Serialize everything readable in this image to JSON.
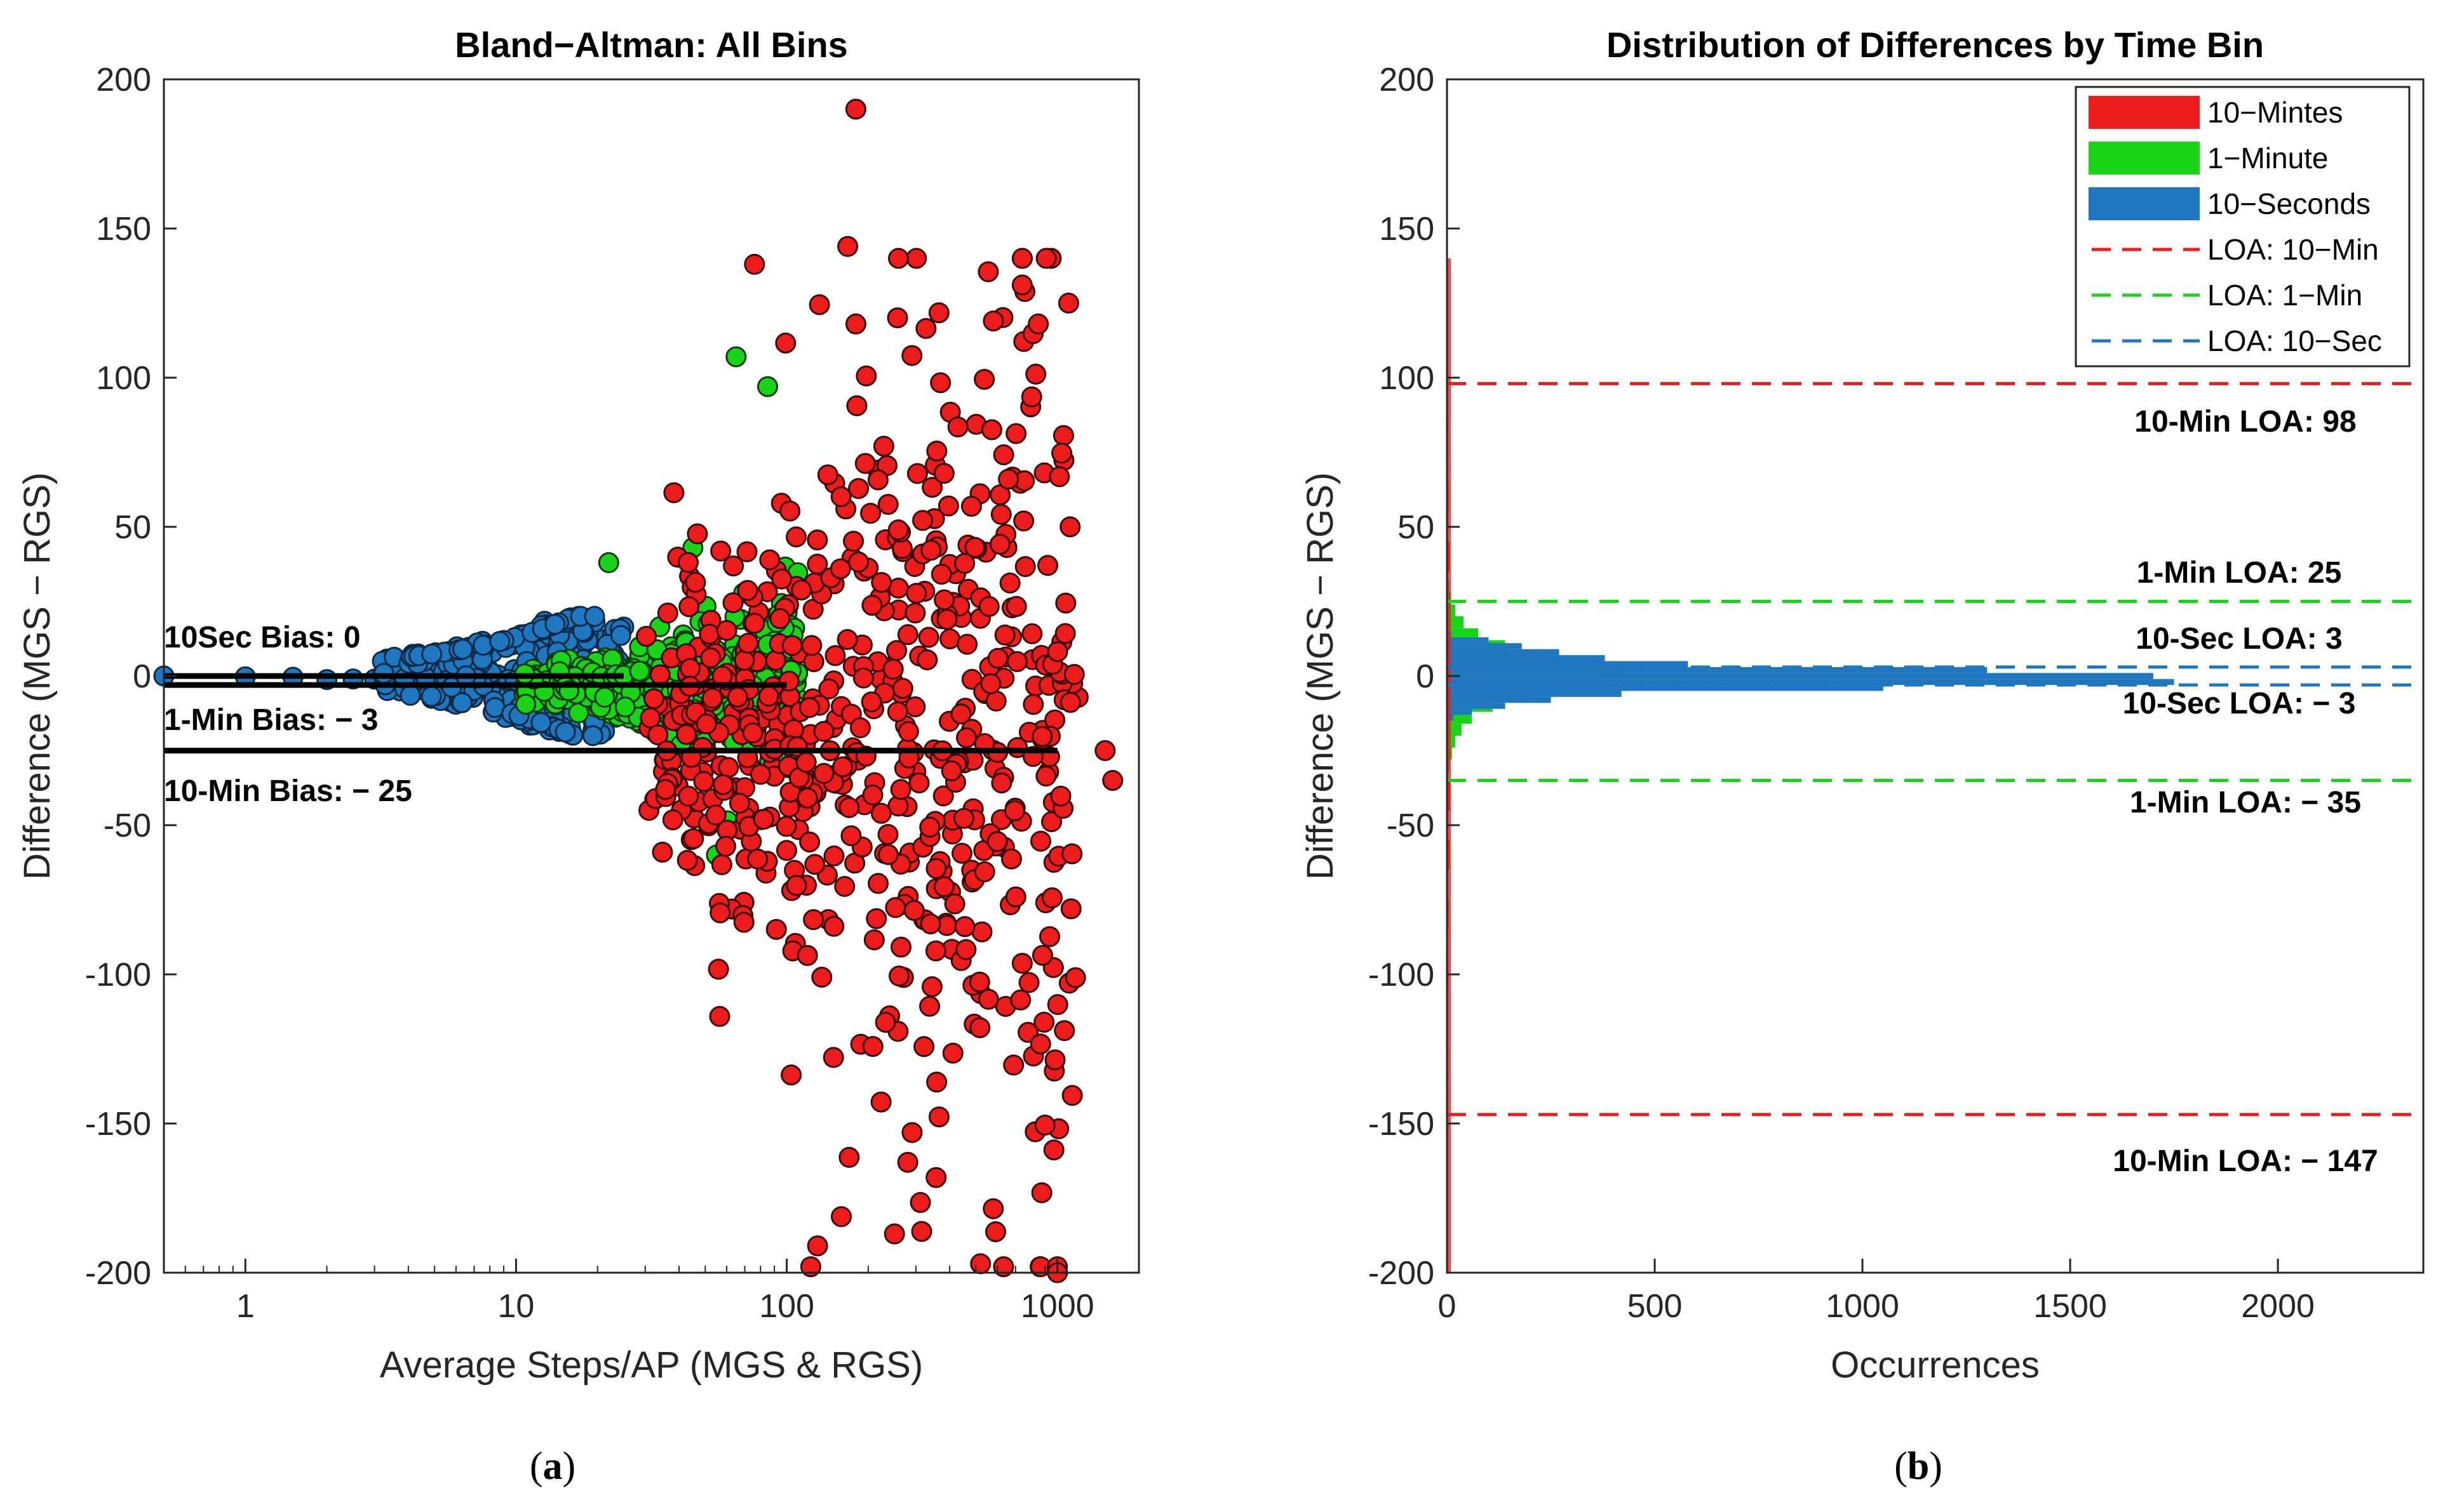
{
  "chart_data": [
    {
      "type": "scatter",
      "title": "Bland−Altman: All Bins",
      "xlabel": "Average Steps/AP (MGS & RGS)",
      "ylabel": "Difference (MGS − RGS)",
      "xscale": "log",
      "xlim": [
        0.5,
        2000
      ],
      "ylim": [
        -200,
        200
      ],
      "xticks": [
        1,
        10,
        100,
        1000
      ],
      "yticks": [
        -200,
        -150,
        -100,
        -50,
        0,
        50,
        100,
        150,
        200
      ],
      "xtick_labels": [
        "1",
        "10",
        "100",
        "1000"
      ],
      "ytick_labels": [
        "-200",
        "-150",
        "-100",
        "-50",
        "0",
        "50",
        "100",
        "150",
        "200"
      ],
      "series": [
        {
          "name": "10-Seconds",
          "color": "#1f77c0",
          "x_range": [
            0.5,
            25
          ],
          "spread_at_max_x": 20
        },
        {
          "name": "1-Minute",
          "color": "#19d419",
          "x_range": [
            10,
            110
          ],
          "spread_at_max_x": 45
        },
        {
          "name": "10-Mintes",
          "color": "#ec1c1c",
          "x_range": [
            25,
            1600
          ],
          "spread_range": [
            -200,
            190
          ]
        }
      ],
      "bias_lines": [
        {
          "label": "10Sec Bias: 0",
          "y": 0
        },
        {
          "label": "1-Min Bias:  − 3",
          "y": -3
        },
        {
          "label": "10-Min Bias:  − 25",
          "y": -25
        }
      ],
      "caption": "(a)"
    },
    {
      "type": "bar",
      "orientation": "horizontal",
      "title": "Distribution of Differences by Time Bin",
      "xlabel": "Occurrences",
      "ylabel": "Difference (MGS − RGS)",
      "xlim": [
        0,
        2350
      ],
      "ylim": [
        -200,
        200
      ],
      "xticks": [
        0,
        500,
        1000,
        1500,
        2000
      ],
      "xtick_labels": [
        "0",
        "500",
        "1000",
        "1500",
        "2000"
      ],
      "yticks": [
        -200,
        -150,
        -100,
        -50,
        0,
        50,
        100,
        150,
        200
      ],
      "ytick_labels": [
        "-200",
        "-150",
        "-100",
        "-50",
        "0",
        "50",
        "100",
        "150",
        "200"
      ],
      "series": [
        {
          "name": "10-Seconds",
          "color": "#1f77c0",
          "bins": [
            [
              14,
              10
            ],
            [
              12,
              100
            ],
            [
              10,
              180
            ],
            [
              8,
              270
            ],
            [
              6,
              380
            ],
            [
              4,
              580
            ],
            [
              2,
              1300
            ],
            [
              0,
              1700
            ],
            [
              -2,
              1750
            ],
            [
              -4,
              1050
            ],
            [
              -6,
              420
            ],
            [
              -8,
              250
            ],
            [
              -10,
              140
            ],
            [
              -12,
              60
            ],
            [
              -14,
              15
            ]
          ]
        },
        {
          "name": "1-Minute",
          "color": "#19d419",
          "bins": [
            [
              30,
              5
            ],
            [
              26,
              10
            ],
            [
              22,
              20
            ],
            [
              18,
              40
            ],
            [
              14,
              75
            ],
            [
              10,
              140
            ],
            [
              6,
              250
            ],
            [
              2,
              430
            ],
            [
              -2,
              360
            ],
            [
              -6,
              200
            ],
            [
              -10,
              110
            ],
            [
              -14,
              60
            ],
            [
              -18,
              35
            ],
            [
              -22,
              20
            ],
            [
              -26,
              12
            ],
            [
              -30,
              6
            ]
          ]
        },
        {
          "name": "10-Mintes",
          "color": "#ec1c1c",
          "bins": [
            [
              120,
              1
            ],
            [
              100,
              2
            ],
            [
              80,
              3
            ],
            [
              60,
              4
            ],
            [
              40,
              6
            ],
            [
              20,
              10
            ],
            [
              10,
              16
            ],
            [
              0,
              22
            ],
            [
              -10,
              16
            ],
            [
              -20,
              12
            ],
            [
              -40,
              8
            ],
            [
              -60,
              6
            ],
            [
              -80,
              4
            ],
            [
              -100,
              3
            ],
            [
              -130,
              3
            ],
            [
              -160,
              2
            ],
            [
              -190,
              2
            ]
          ]
        }
      ],
      "loa_lines": [
        {
          "series": "10-Mintes",
          "y": 98,
          "label": "10-Min LOA: 98",
          "color": "#ec1c1c"
        },
        {
          "series": "10-Mintes",
          "y": -147,
          "label": "10-Min LOA:  − 147",
          "color": "#ec1c1c"
        },
        {
          "series": "1-Minute",
          "y": 25,
          "label": "1-Min LOA: 25",
          "color": "#19d419"
        },
        {
          "series": "1-Minute",
          "y": -35,
          "label": "1-Min LOA:  − 35",
          "color": "#19d419"
        },
        {
          "series": "10-Seconds",
          "y": 3,
          "label": "10-Sec LOA: 3",
          "color": "#1f77c0"
        },
        {
          "series": "10-Seconds",
          "y": -3,
          "label": "10-Sec LOA:  − 3",
          "color": "#1f77c0"
        }
      ],
      "legend": {
        "position": "top-right",
        "entries": [
          {
            "label": "10−Mintes",
            "kind": "patch",
            "color": "#ec1c1c"
          },
          {
            "label": "1−Minute",
            "kind": "patch",
            "color": "#19d419"
          },
          {
            "label": "10−Seconds",
            "kind": "patch",
            "color": "#1f77c0"
          },
          {
            "label": "LOA: 10−Min",
            "kind": "dash",
            "color": "#ec1c1c"
          },
          {
            "label": "LOA: 1−Min",
            "kind": "dash",
            "color": "#19d419"
          },
          {
            "label": "LOA: 10−Sec",
            "kind": "dash",
            "color": "#1f77c0"
          }
        ]
      },
      "caption": "(b)"
    }
  ]
}
